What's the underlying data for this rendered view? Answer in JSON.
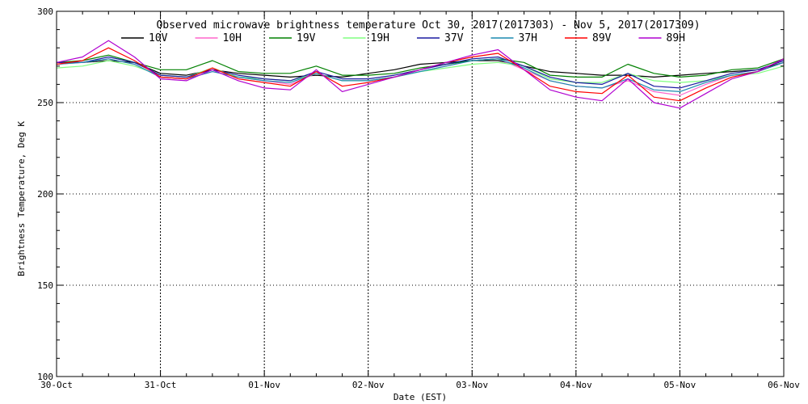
{
  "chart_data": {
    "type": "line",
    "title": "Observed microwave brightness temperature Oct 30, 2017(2017303) - Nov  5, 2017(2017309)",
    "xlabel": "Date (EST)",
    "ylabel": "Brightness Temperature, Deg K",
    "ylim": [
      100,
      300
    ],
    "yticks": [
      100,
      150,
      200,
      250,
      300
    ],
    "xlim": [
      0,
      7
    ],
    "xticks": [
      0,
      1,
      2,
      3,
      4,
      5,
      6,
      7
    ],
    "xtick_labels": [
      "30-Oct",
      "31-Oct",
      "01-Nov",
      "02-Nov",
      "03-Nov",
      "04-Nov",
      "05-Nov",
      "06-Nov"
    ],
    "grid": true,
    "legend_position": "top",
    "series": [
      {
        "name": "10V",
        "color": "#000000",
        "x": [
          0,
          0.25,
          0.5,
          0.75,
          1,
          1.25,
          1.5,
          1.75,
          2,
          2.25,
          2.5,
          2.75,
          3,
          3.25,
          3.5,
          3.75,
          4,
          4.25,
          4.5,
          4.75,
          5,
          5.25,
          5.5,
          5.75,
          6,
          6.25,
          6.5,
          6.75,
          7
        ],
        "y": [
          272,
          272,
          273,
          272,
          266,
          265,
          268,
          266,
          265,
          264,
          265,
          264,
          266,
          268,
          271,
          272,
          273,
          273,
          270,
          267,
          266,
          265,
          265,
          264,
          265,
          266,
          267,
          268,
          272
        ]
      },
      {
        "name": "10H",
        "color": "#ff66cc",
        "x": [
          0,
          0.25,
          0.5,
          0.75,
          1,
          1.25,
          1.5,
          1.75,
          2,
          2.25,
          2.5,
          2.75,
          3,
          3.25,
          3.5,
          3.75,
          4,
          4.25,
          4.5,
          4.75,
          5,
          5.25,
          5.5,
          5.75,
          6,
          6.25,
          6.5,
          6.75,
          7
        ],
        "y": [
          271,
          272,
          274,
          271,
          264,
          263,
          267,
          264,
          262,
          260,
          266,
          262,
          262,
          264,
          267,
          270,
          273,
          274,
          268,
          262,
          259,
          258,
          262,
          256,
          254,
          260,
          265,
          267,
          272
        ]
      },
      {
        "name": "19V",
        "color": "#008000",
        "x": [
          0,
          0.25,
          0.5,
          0.75,
          1,
          1.25,
          1.5,
          1.75,
          2,
          2.25,
          2.5,
          2.75,
          3,
          3.25,
          3.5,
          3.75,
          4,
          4.25,
          4.5,
          4.75,
          5,
          5.25,
          5.5,
          5.75,
          6,
          6.25,
          6.5,
          6.75,
          7
        ],
        "y": [
          272,
          273,
          276,
          272,
          268,
          268,
          273,
          267,
          266,
          266,
          270,
          265,
          265,
          266,
          269,
          271,
          273,
          274,
          272,
          265,
          264,
          264,
          271,
          266,
          264,
          265,
          268,
          269,
          274
        ]
      },
      {
        "name": "19H",
        "color": "#80ff80",
        "x": [
          0,
          0.25,
          0.5,
          0.75,
          1,
          1.25,
          1.5,
          1.75,
          2,
          2.25,
          2.5,
          2.75,
          3,
          3.25,
          3.5,
          3.75,
          4,
          4.25,
          4.5,
          4.75,
          5,
          5.25,
          5.5,
          5.75,
          6,
          6.25,
          6.5,
          6.75,
          7
        ],
        "y": [
          269,
          270,
          273,
          270,
          265,
          264,
          269,
          264,
          263,
          262,
          266,
          262,
          262,
          264,
          267,
          269,
          271,
          272,
          270,
          263,
          261,
          261,
          266,
          262,
          261,
          262,
          265,
          266,
          270
        ]
      },
      {
        "name": "37V",
        "color": "#1a1aa0",
        "x": [
          0,
          0.25,
          0.5,
          0.75,
          1,
          1.25,
          1.5,
          1.75,
          2,
          2.25,
          2.5,
          2.75,
          3,
          3.25,
          3.5,
          3.75,
          4,
          4.25,
          4.5,
          4.75,
          5,
          5.25,
          5.5,
          5.75,
          6,
          6.25,
          6.5,
          6.75,
          7
        ],
        "y": [
          272,
          272,
          275,
          272,
          265,
          264,
          268,
          265,
          263,
          262,
          267,
          263,
          263,
          265,
          268,
          271,
          274,
          275,
          270,
          264,
          261,
          260,
          266,
          259,
          258,
          262,
          266,
          268,
          273
        ]
      },
      {
        "name": "37H",
        "color": "#1a8ab0",
        "x": [
          0,
          0.25,
          0.5,
          0.75,
          1,
          1.25,
          1.5,
          1.75,
          2,
          2.25,
          2.5,
          2.75,
          3,
          3.25,
          3.5,
          3.75,
          4,
          4.25,
          4.5,
          4.75,
          5,
          5.25,
          5.5,
          5.75,
          6,
          6.25,
          6.5,
          6.75,
          7
        ],
        "y": [
          271,
          272,
          274,
          271,
          264,
          263,
          267,
          264,
          262,
          261,
          266,
          262,
          262,
          264,
          267,
          270,
          273,
          274,
          269,
          262,
          259,
          258,
          263,
          257,
          256,
          261,
          265,
          267,
          272
        ]
      },
      {
        "name": "89V",
        "color": "#ff0000",
        "x": [
          0,
          0.25,
          0.5,
          0.75,
          1,
          1.25,
          1.5,
          1.75,
          2,
          2.25,
          2.5,
          2.75,
          3,
          3.25,
          3.5,
          3.75,
          4,
          4.25,
          4.5,
          4.75,
          5,
          5.25,
          5.5,
          5.75,
          6,
          6.25,
          6.5,
          6.75,
          7
        ],
        "y": [
          271,
          273,
          280,
          273,
          264,
          263,
          269,
          263,
          261,
          259,
          267,
          259,
          261,
          264,
          268,
          272,
          275,
          277,
          268,
          259,
          256,
          255,
          265,
          253,
          251,
          258,
          264,
          267,
          274
        ]
      },
      {
        "name": "89H",
        "color": "#b000d0",
        "x": [
          0,
          0.25,
          0.5,
          0.75,
          1,
          1.25,
          1.5,
          1.75,
          2,
          2.25,
          2.5,
          2.75,
          3,
          3.25,
          3.5,
          3.75,
          4,
          4.25,
          4.5,
          4.75,
          5,
          5.25,
          5.5,
          5.75,
          6,
          6.25,
          6.5,
          6.75,
          7
        ],
        "y": [
          272,
          275,
          284,
          275,
          263,
          262,
          268,
          262,
          258,
          257,
          268,
          256,
          260,
          264,
          268,
          272,
          276,
          279,
          268,
          257,
          253,
          251,
          263,
          250,
          247,
          255,
          263,
          267,
          274
        ]
      }
    ]
  }
}
